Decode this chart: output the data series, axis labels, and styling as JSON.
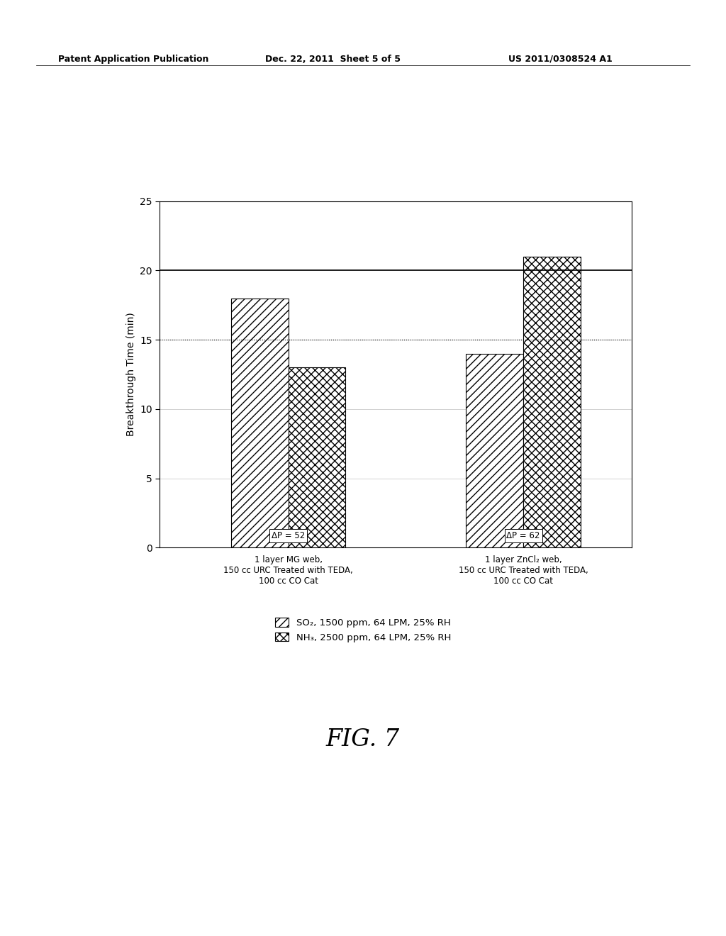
{
  "categories": [
    "1 layer MG web,\n150 cc URC Treated with TEDA,\n100 cc CO Cat",
    "1 layer ZnCl₂ web,\n150 cc URC Treated with TEDA,\n100 cc CO Cat"
  ],
  "so2_values": [
    18.0,
    14.0
  ],
  "nh3_values": [
    13.0,
    21.0
  ],
  "delta_p": [
    "52",
    "62"
  ],
  "ylabel": "Breakthrough Time (min)",
  "ylim": [
    0,
    25
  ],
  "yticks": [
    0,
    5,
    10,
    15,
    20,
    25
  ],
  "hline1": 20.0,
  "hline2": 15.0,
  "legend_so2": "SO₂, 1500 ppm, 64 LPM, 25% RH",
  "legend_nh3": "NH₃, 2500 ppm, 64 LPM, 25% RH",
  "fig_label": "FIG. 7",
  "header_left": "Patent Application Publication",
  "header_mid": "Dec. 22, 2011  Sheet 5 of 5",
  "header_right": "US 2011/0308524 A1",
  "bar_width": 0.28,
  "background": "#ffffff",
  "bar_edge_color": "#000000",
  "hatch_so2": "///",
  "hatch_nh3": "xxx",
  "bar_facecolor": "#ffffff"
}
